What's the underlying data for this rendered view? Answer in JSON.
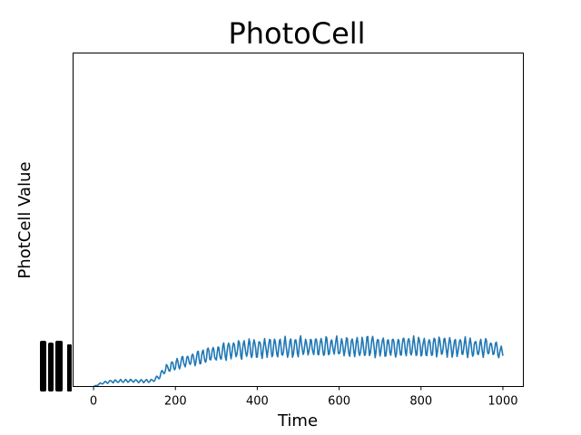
{
  "chart_data": {
    "type": "line",
    "title": "PhotoCell",
    "xlabel": "Time",
    "ylabel": "PhotCell Value",
    "xlim": [
      -50,
      1050
    ],
    "ylim": [
      0,
      1
    ],
    "grid": false,
    "xticks": [
      "0",
      "200",
      "400",
      "600",
      "800",
      "1000"
    ],
    "xtick_values": [
      0,
      200,
      400,
      600,
      800,
      1000
    ],
    "series": [
      {
        "color": "#1f77b4",
        "description": "values read as normalized fraction of plot height",
        "x": [
          0,
          20,
          40,
          60,
          80,
          100,
          120,
          140,
          150,
          160,
          170,
          180,
          200,
          220,
          240,
          260,
          280,
          300,
          320,
          340,
          360,
          380,
          400,
          420,
          440,
          460,
          480,
          500,
          550,
          600,
          650,
          700,
          750,
          800,
          850,
          900,
          940,
          960,
          980,
          1000
        ],
        "y": [
          0.0,
          0.01,
          0.015,
          0.016,
          0.017,
          0.017,
          0.016,
          0.017,
          0.02,
          0.03,
          0.045,
          0.055,
          0.065,
          0.075,
          0.082,
          0.09,
          0.095,
          0.1,
          0.105,
          0.108,
          0.11,
          0.113,
          0.115,
          0.116,
          0.117,
          0.118,
          0.118,
          0.119,
          0.119,
          0.12,
          0.12,
          0.12,
          0.12,
          0.12,
          0.119,
          0.119,
          0.118,
          0.117,
          0.113,
          0.1
        ],
        "oscillation_amplitude": [
          0.0,
          0.003,
          0.004,
          0.004,
          0.004,
          0.004,
          0.004,
          0.004,
          0.005,
          0.007,
          0.01,
          0.012,
          0.014,
          0.016,
          0.018,
          0.02,
          0.021,
          0.022,
          0.023,
          0.024,
          0.025,
          0.025,
          0.026,
          0.026,
          0.027,
          0.027,
          0.027,
          0.027,
          0.027,
          0.027,
          0.027,
          0.027,
          0.027,
          0.027,
          0.027,
          0.026,
          0.025,
          0.024,
          0.02,
          0.015
        ]
      }
    ]
  }
}
